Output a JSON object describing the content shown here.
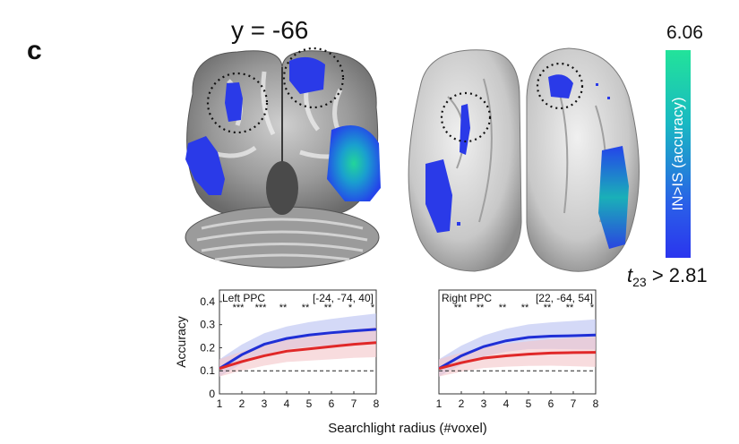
{
  "panel_label": "c",
  "slice_title": "y = -66",
  "colorbar": {
    "max_value": "6.06",
    "label": "IN>IS (accuracy)",
    "threshold_t": "t",
    "threshold_sub": "23",
    "threshold_rest": " > 2.81",
    "colors": [
      "#22e39a",
      "#19b9c2",
      "#2a5ee8",
      "#2a35ee"
    ]
  },
  "chart_data": [
    {
      "type": "line",
      "title": "Left PPC",
      "coords": "[-24, -74, 40]",
      "xlabel": "Searchlight radius (#voxel)",
      "ylabel": "Accuracy",
      "x": [
        1,
        2,
        3,
        4,
        5,
        6,
        7,
        8
      ],
      "xlim": [
        1,
        8
      ],
      "ylim": [
        0,
        0.45
      ],
      "yticks": [
        "0",
        "0.1",
        "0.2",
        "0.3",
        "0.4"
      ],
      "ytick_values": [
        0,
        0.1,
        0.2,
        0.3,
        0.4
      ],
      "chance": 0.1,
      "significance": [
        "***",
        "***",
        "**",
        "**",
        "**",
        "*",
        "*"
      ],
      "series": [
        {
          "name": "IN",
          "color": "#1f2fd6",
          "band": "#b8c0f2",
          "values": [
            0.11,
            0.17,
            0.215,
            0.24,
            0.255,
            0.265,
            0.273,
            0.28
          ]
        },
        {
          "name": "IS",
          "color": "#e02828",
          "band": "#f4c4c8",
          "values": [
            0.11,
            0.14,
            0.165,
            0.185,
            0.195,
            0.205,
            0.215,
            0.222
          ]
        }
      ]
    },
    {
      "type": "line",
      "title": "Right PPC",
      "coords": "[22, -64, 54]",
      "xlabel": "Searchlight radius (#voxel)",
      "ylabel": "Accuracy",
      "x": [
        1,
        2,
        3,
        4,
        5,
        6,
        7,
        8
      ],
      "xlim": [
        1,
        8
      ],
      "ylim": [
        0,
        0.45
      ],
      "yticks": [
        "0",
        "0.1",
        "0.2",
        "0.3",
        "0.4"
      ],
      "ytick_values": [
        0,
        0.1,
        0.2,
        0.3,
        0.4
      ],
      "chance": 0.1,
      "significance": [
        "**",
        "**",
        "**",
        "**",
        "**",
        "**",
        "*"
      ],
      "series": [
        {
          "name": "IN",
          "color": "#1f2fd6",
          "band": "#b8c0f2",
          "values": [
            0.11,
            0.165,
            0.205,
            0.23,
            0.245,
            0.25,
            0.252,
            0.255
          ]
        },
        {
          "name": "IS",
          "color": "#e02828",
          "band": "#f4c4c8",
          "values": [
            0.11,
            0.135,
            0.155,
            0.165,
            0.172,
            0.177,
            0.179,
            0.18
          ]
        }
      ]
    }
  ]
}
